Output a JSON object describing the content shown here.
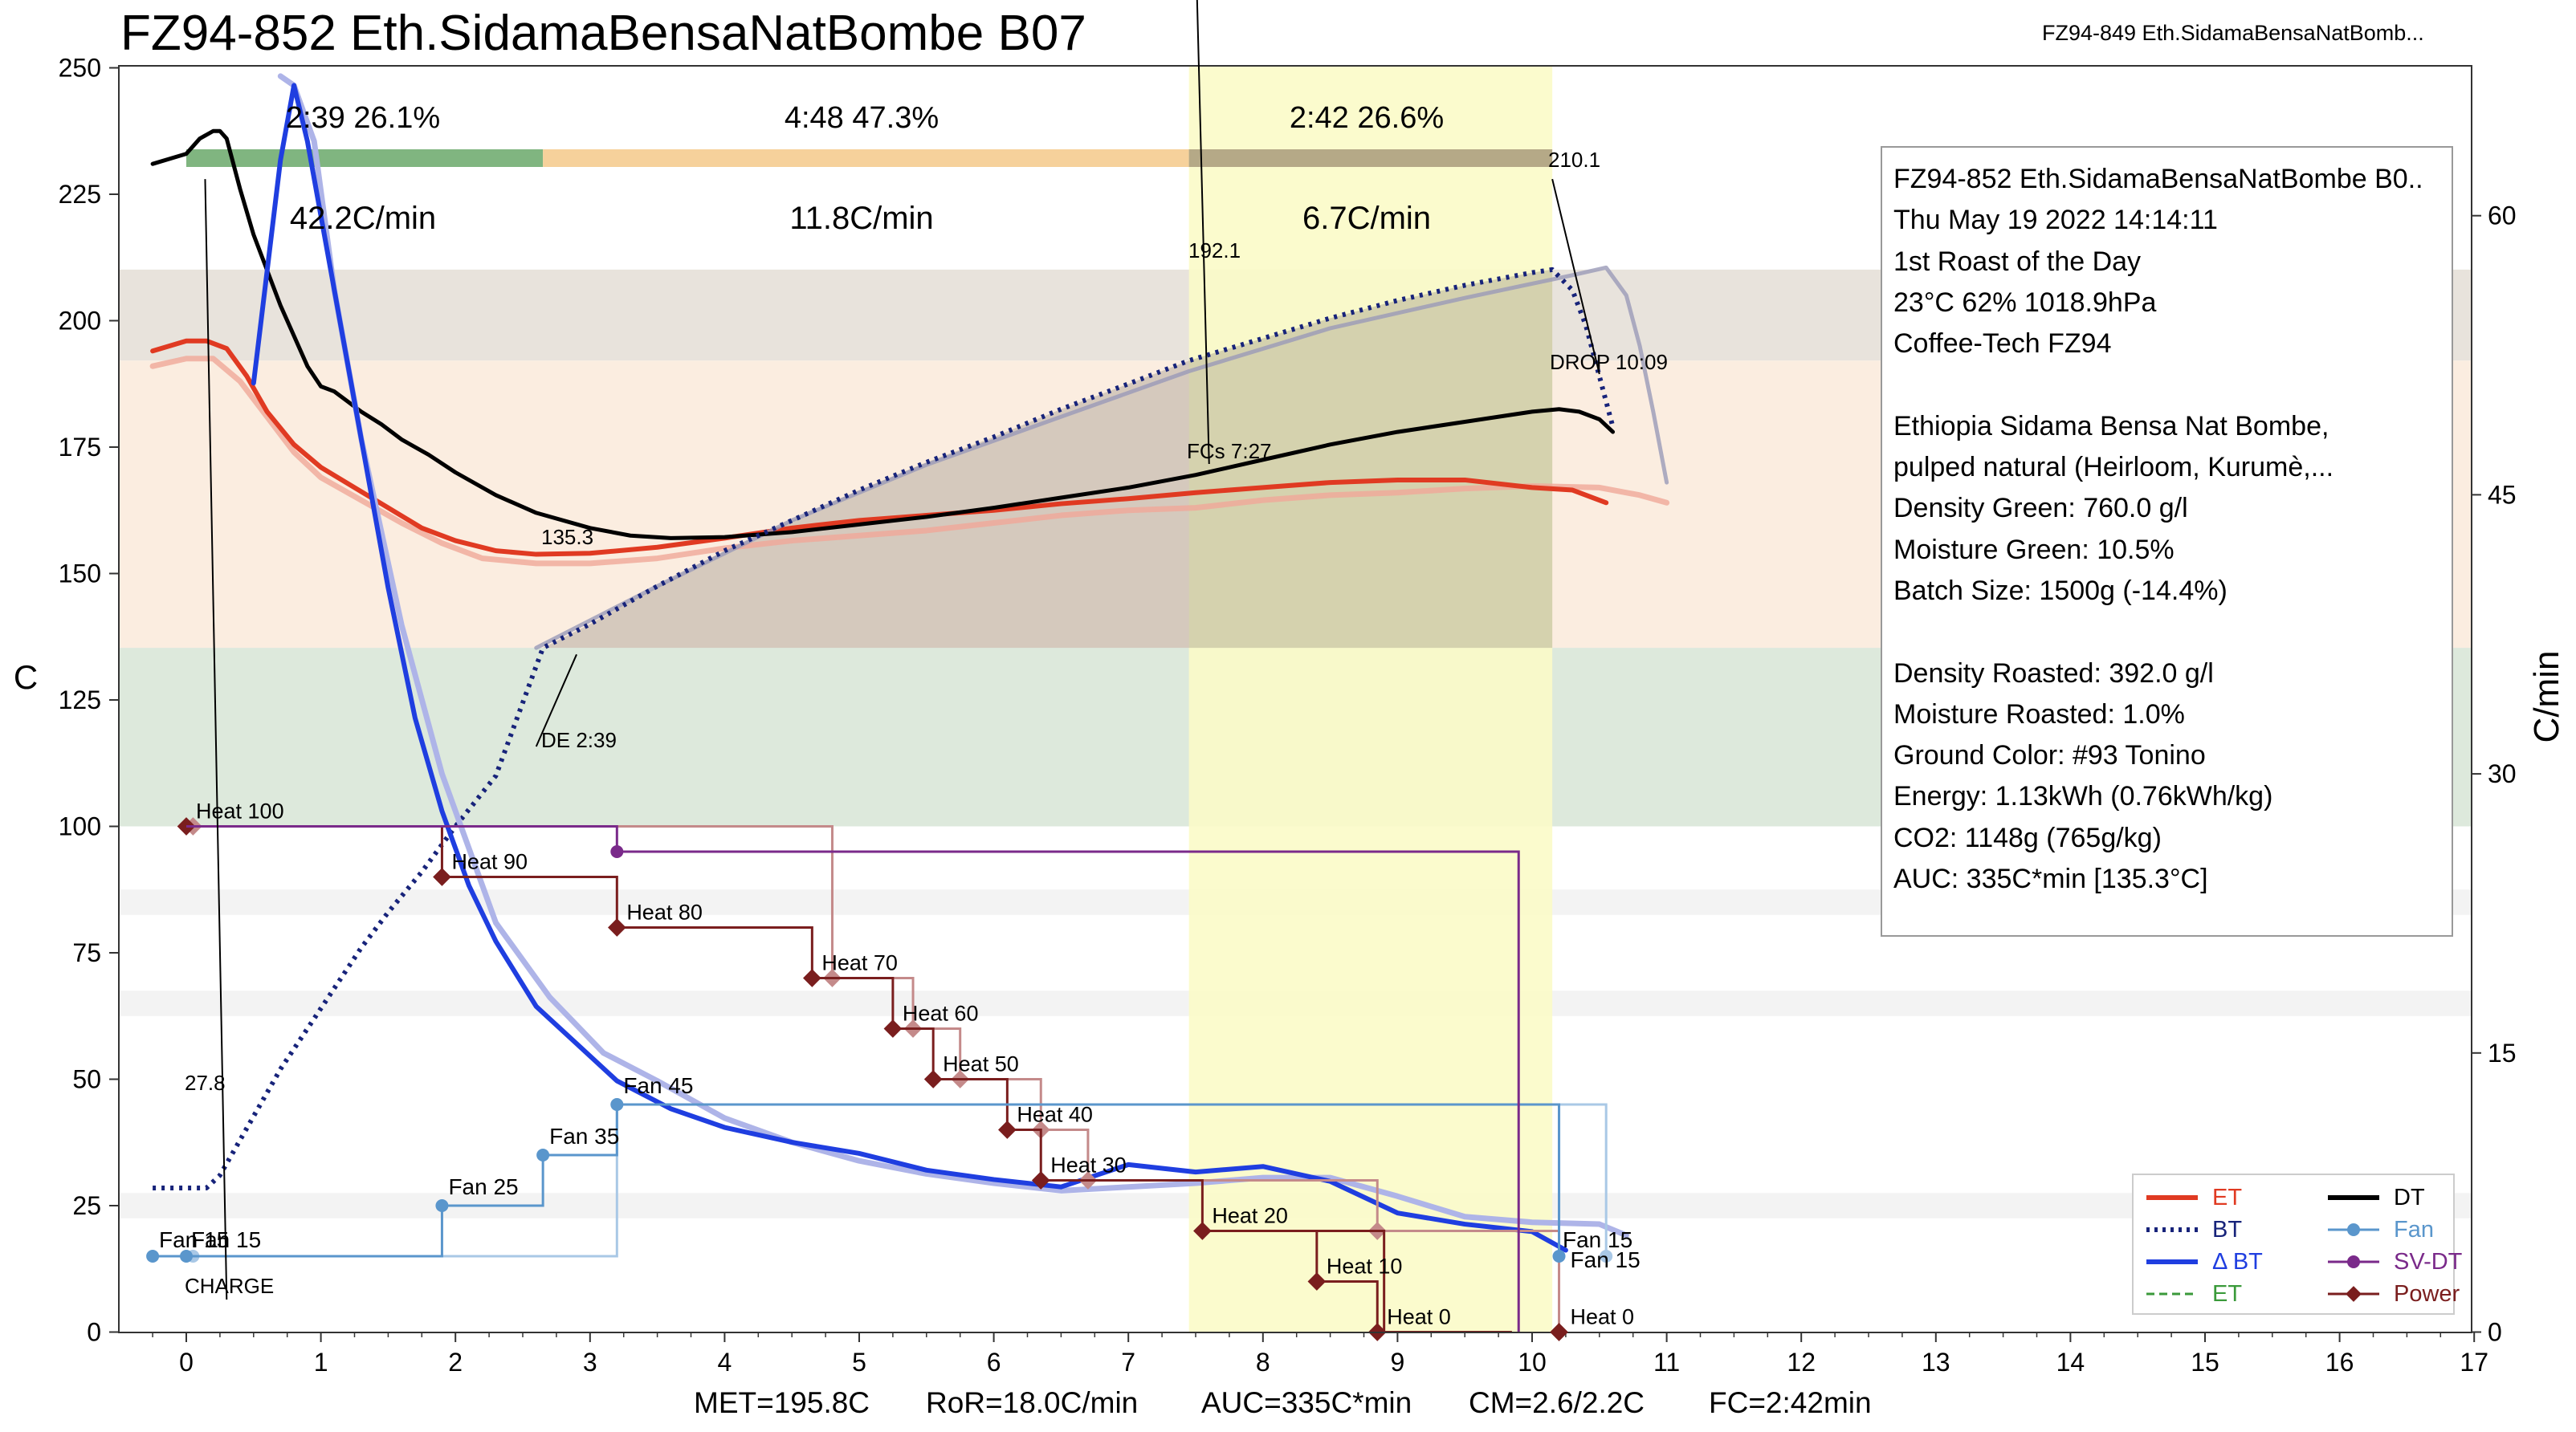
{
  "title": "FZ94-852 Eth.SidamaBensaNatBombe B07",
  "background_profile_title": "FZ94-849 Eth.SidamaBensaNatBomb...",
  "colors": {
    "ET": "#e03a22",
    "ET_background": "#f0a898",
    "BT": "#17237a",
    "DeltaBT": "#1f3ee0",
    "DeltaBT_background": "#aeb4e8",
    "DT": "#000000",
    "Fan": "#5a96cc",
    "SV_DT": "#7a2a8a",
    "Power": "#7a1e1e",
    "drying_phase": "#6aa86a",
    "maillard_phase": "#f5c98a",
    "finishing_phase": "#a89a7a",
    "dev_highlight": "#fbfbc8",
    "zone_top": "#e8e3dc",
    "zone_mid": "#fbede0",
    "zone_low": "#dde9dc"
  },
  "phases": [
    {
      "name": "drying",
      "time": "2:39",
      "percent": "26.1%",
      "ror": "42.2C/min"
    },
    {
      "name": "maillard",
      "time": "4:48",
      "percent": "47.3%",
      "ror": "11.8C/min"
    },
    {
      "name": "finishing",
      "time": "2:42",
      "percent": "26.6%",
      "ror": "6.7C/min"
    }
  ],
  "phase_labels": {
    "drying": "2:39  26.1%",
    "maillard": "4:48  47.3%",
    "finishing": "2:42  26.6%"
  },
  "annotations": {
    "charge_temp": "27.8",
    "charge_label": "CHARGE",
    "de_temp": "135.3",
    "de_label": "DE 2:39",
    "fcs_temp": "192.1",
    "fcs_label": "FCs 7:27",
    "drop_temp": "210.1",
    "drop_label": "DROP 10:09",
    "fan_charge_a": "Fan 15",
    "fan_charge_b": "Fan 15",
    "fan_end": "Fan 15"
  },
  "info_box": [
    "FZ94-852 Eth.SidamaBensaNatBombe B0..",
    "Thu May 19 2022 14:14:11",
    "1st Roast of the Day",
    "23°C  62%  1018.9hPa",
    "Coffee-Tech FZ94",
    "",
    "Ethiopia Sidama Bensa Nat Bombe,",
    " pulped natural (Heirloom, Kurumè,...",
    "Density Green: 760.0 g/l",
    "Moisture Green: 10.5%",
    "Batch Size: 1500g (-14.4%)",
    "",
    "Density Roasted: 392.0 g/l",
    "Moisture Roasted: 1.0%",
    "Ground Color: #93 Tonino",
    "Energy: 1.13kWh (0.76kWh/kg)",
    "CO2: 1148g (765g/kg)",
    "AUC: 335C*min [135.3°C]"
  ],
  "footer": {
    "met": "MET=195.8C",
    "ror": "RoR=18.0C/min",
    "auc": "AUC=335C*min",
    "cm": "CM=2.6/2.2C",
    "fc": "FC=2:42min"
  },
  "legend": [
    {
      "label": "ET",
      "color": "#e03a22",
      "style": "solid",
      "marker": "none"
    },
    {
      "label": "DT",
      "color": "#000000",
      "style": "solid",
      "marker": "none"
    },
    {
      "label": "BT",
      "color": "#17237a",
      "style": "dotted",
      "marker": "none"
    },
    {
      "label": "Fan",
      "color": "#5a96cc",
      "style": "solid",
      "marker": "circle"
    },
    {
      "label": "Δ BT",
      "color": "#1f3ee0",
      "style": "solid",
      "marker": "none"
    },
    {
      "label": "SV-DT",
      "color": "#7a2a8a",
      "style": "solid",
      "marker": "circle"
    },
    {
      "label": "ET",
      "color": "#3a9a3a",
      "style": "dashed",
      "marker": "none"
    },
    {
      "label": "Power",
      "color": "#7a1e1e",
      "style": "solid",
      "marker": "diamond"
    }
  ],
  "chart_data": {
    "type": "line",
    "title": "FZ94-852 Eth.SidamaBensaNatBombe B07",
    "xlabel": "",
    "ylabel": "C",
    "y2label": "C/min",
    "xlim": [
      -0.45,
      17
    ],
    "ylim": [
      0,
      250
    ],
    "y2lim": [
      0,
      68
    ],
    "x_ticks": [
      0,
      1,
      2,
      3,
      4,
      5,
      6,
      7,
      8,
      9,
      10,
      11,
      12,
      13,
      14,
      15,
      16,
      17
    ],
    "y_ticks": [
      0,
      25,
      50,
      75,
      100,
      125,
      150,
      175,
      200,
      225,
      250
    ],
    "y2_ticks": [
      0,
      15,
      30,
      45,
      60
    ],
    "grid": false,
    "legend_position": "bottom-right",
    "background_zones": [
      {
        "from": 192.1,
        "to": 210.1,
        "color": "zone_top"
      },
      {
        "from": 135.3,
        "to": 192.1,
        "color": "zone_mid"
      },
      {
        "from": 100,
        "to": 135.3,
        "color": "zone_low"
      }
    ],
    "development_band": {
      "x_from": 7.45,
      "x_to": 10.15
    },
    "auc_area": {
      "x_from": 2.65,
      "x_to": 10.15
    },
    "series": [
      {
        "name": "ET",
        "axis": "left",
        "points": [
          [
            -0.25,
            194
          ],
          [
            0,
            196
          ],
          [
            0.15,
            196
          ],
          [
            0.3,
            194.5
          ],
          [
            0.45,
            189
          ],
          [
            0.6,
            182
          ],
          [
            0.8,
            175.5
          ],
          [
            1,
            171
          ],
          [
            1.25,
            167
          ],
          [
            1.5,
            163
          ],
          [
            1.75,
            159
          ],
          [
            2,
            156.5
          ],
          [
            2.3,
            154.5
          ],
          [
            2.6,
            153.8
          ],
          [
            3,
            154
          ],
          [
            3.5,
            155.2
          ],
          [
            4,
            157
          ],
          [
            4.5,
            159
          ],
          [
            5,
            160.5
          ],
          [
            5.5,
            161.5
          ],
          [
            6,
            162.5
          ],
          [
            6.5,
            163.8
          ],
          [
            7,
            164.8
          ],
          [
            7.5,
            166
          ],
          [
            8,
            167
          ],
          [
            8.5,
            168
          ],
          [
            9,
            168.5
          ],
          [
            9.5,
            168.5
          ],
          [
            10,
            167
          ],
          [
            10.3,
            166.5
          ],
          [
            10.55,
            164
          ]
        ]
      },
      {
        "name": "ET background",
        "axis": "left",
        "points": [
          [
            -0.25,
            191
          ],
          [
            0,
            192.5
          ],
          [
            0.2,
            192.5
          ],
          [
            0.4,
            188
          ],
          [
            0.6,
            181
          ],
          [
            0.8,
            174
          ],
          [
            1,
            169
          ],
          [
            1.3,
            164.5
          ],
          [
            1.6,
            160
          ],
          [
            1.9,
            156
          ],
          [
            2.2,
            153
          ],
          [
            2.6,
            152
          ],
          [
            3,
            152
          ],
          [
            3.5,
            153
          ],
          [
            4,
            155
          ],
          [
            4.5,
            156.5
          ],
          [
            5,
            157.5
          ],
          [
            5.5,
            158.5
          ],
          [
            6,
            160
          ],
          [
            6.5,
            161.5
          ],
          [
            7,
            162.5
          ],
          [
            7.5,
            163
          ],
          [
            8,
            164.5
          ],
          [
            8.5,
            165.5
          ],
          [
            9,
            166
          ],
          [
            9.5,
            166.8
          ],
          [
            10,
            167.3
          ],
          [
            10.5,
            167
          ],
          [
            10.8,
            165.5
          ],
          [
            11,
            164
          ]
        ]
      },
      {
        "name": "DT",
        "axis": "left",
        "points": [
          [
            -0.25,
            231
          ],
          [
            0,
            233
          ],
          [
            0.1,
            236
          ],
          [
            0.2,
            237.5
          ],
          [
            0.25,
            237.5
          ],
          [
            0.3,
            236
          ],
          [
            0.4,
            226
          ],
          [
            0.5,
            217
          ],
          [
            0.6,
            210
          ],
          [
            0.7,
            203
          ],
          [
            0.8,
            197
          ],
          [
            0.9,
            191
          ],
          [
            1,
            187
          ],
          [
            1.1,
            186
          ],
          [
            1.2,
            184
          ],
          [
            1.3,
            182
          ],
          [
            1.45,
            179.5
          ],
          [
            1.6,
            176.5
          ],
          [
            1.8,
            173.5
          ],
          [
            2,
            170
          ],
          [
            2.3,
            165.5
          ],
          [
            2.6,
            162
          ],
          [
            3,
            159
          ],
          [
            3.3,
            157.5
          ],
          [
            3.6,
            157
          ],
          [
            4,
            157.2
          ],
          [
            4.5,
            158.2
          ],
          [
            5,
            159.7
          ],
          [
            5.5,
            161.2
          ],
          [
            6,
            163
          ],
          [
            6.5,
            165
          ],
          [
            7,
            167
          ],
          [
            7.5,
            169.5
          ],
          [
            8,
            172.5
          ],
          [
            8.5,
            175.5
          ],
          [
            9,
            178
          ],
          [
            9.5,
            180
          ],
          [
            10,
            182
          ],
          [
            10.2,
            182.5
          ],
          [
            10.35,
            182
          ],
          [
            10.5,
            180.5
          ],
          [
            10.6,
            178
          ]
        ]
      },
      {
        "name": "BT",
        "axis": "left",
        "points": [
          [
            -0.25,
            28.5
          ],
          [
            0.15,
            28.5
          ],
          [
            0.25,
            31
          ],
          [
            0.4,
            38
          ],
          [
            0.55,
            45
          ],
          [
            0.7,
            52
          ],
          [
            0.9,
            60
          ],
          [
            1.1,
            68
          ],
          [
            1.3,
            76
          ],
          [
            1.5,
            83
          ],
          [
            1.75,
            91
          ],
          [
            2,
            100
          ],
          [
            2.3,
            110
          ],
          [
            2.65,
            135.3
          ],
          [
            3,
            140
          ],
          [
            3.5,
            147.5
          ],
          [
            4,
            154.5
          ],
          [
            4.5,
            160.5
          ],
          [
            5,
            166.5
          ],
          [
            5.5,
            172
          ],
          [
            6,
            177
          ],
          [
            6.5,
            182.5
          ],
          [
            7,
            187.5
          ],
          [
            7.45,
            192.1
          ],
          [
            8,
            196.5
          ],
          [
            8.5,
            200.5
          ],
          [
            9,
            204
          ],
          [
            9.5,
            207
          ],
          [
            10,
            209.5
          ],
          [
            10.15,
            210.1
          ],
          [
            10.3,
            206
          ],
          [
            10.4,
            199
          ],
          [
            10.5,
            189
          ],
          [
            10.6,
            179
          ]
        ]
      },
      {
        "name": "BT background",
        "axis": "left",
        "points": [
          [
            2.6,
            135.3
          ],
          [
            3.5,
            147.5
          ],
          [
            4.5,
            160.5
          ],
          [
            5.5,
            171.5
          ],
          [
            6.5,
            181
          ],
          [
            7.45,
            190
          ],
          [
            8.5,
            198.5
          ],
          [
            9.5,
            204.5
          ],
          [
            10.3,
            209
          ],
          [
            10.55,
            210.5
          ],
          [
            10.7,
            205
          ],
          [
            10.8,
            195
          ],
          [
            10.9,
            182
          ],
          [
            11,
            168
          ]
        ]
      },
      {
        "name": "Δ BT",
        "axis": "right",
        "points": [
          [
            0.5,
            51
          ],
          [
            0.6,
            57
          ],
          [
            0.7,
            63
          ],
          [
            0.8,
            67
          ],
          [
            0.9,
            64
          ],
          [
            1.1,
            56
          ],
          [
            1.3,
            48
          ],
          [
            1.5,
            40
          ],
          [
            1.7,
            33
          ],
          [
            1.9,
            28
          ],
          [
            2.1,
            24
          ],
          [
            2.3,
            21
          ],
          [
            2.6,
            17.5
          ],
          [
            2.9,
            15.5
          ],
          [
            3.2,
            13.5
          ],
          [
            3.6,
            12
          ],
          [
            4,
            11
          ],
          [
            4.5,
            10.2
          ],
          [
            5,
            9.6
          ],
          [
            5.5,
            8.7
          ],
          [
            6,
            8.2
          ],
          [
            6.5,
            7.8
          ],
          [
            7,
            9
          ],
          [
            7.5,
            8.6
          ],
          [
            8,
            8.9
          ],
          [
            8.5,
            8.1
          ],
          [
            9,
            6.4
          ],
          [
            9.5,
            5.8
          ],
          [
            10,
            5.4
          ],
          [
            10.25,
            4.4
          ]
        ]
      },
      {
        "name": "Δ BT background",
        "axis": "right",
        "points": [
          [
            0.7,
            67.5
          ],
          [
            0.8,
            67
          ],
          [
            0.95,
            64
          ],
          [
            1.1,
            56
          ],
          [
            1.3,
            48
          ],
          [
            1.6,
            38
          ],
          [
            1.9,
            30
          ],
          [
            2.3,
            22
          ],
          [
            2.7,
            18
          ],
          [
            3.1,
            15
          ],
          [
            3.5,
            13.5
          ],
          [
            4,
            11.5
          ],
          [
            4.5,
            10.2
          ],
          [
            5,
            9.2
          ],
          [
            5.5,
            8.5
          ],
          [
            6,
            8
          ],
          [
            6.5,
            7.6
          ],
          [
            7,
            7.8
          ],
          [
            7.5,
            8
          ],
          [
            8,
            8.3
          ],
          [
            8.5,
            8.3
          ],
          [
            9,
            7.3
          ],
          [
            9.5,
            6.2
          ],
          [
            10,
            5.9
          ],
          [
            10.5,
            5.8
          ],
          [
            10.7,
            5.2
          ]
        ]
      },
      {
        "name": "Power",
        "axis": "left",
        "step": true,
        "markers": [
          [
            0,
            100
          ],
          [
            1.9,
            90
          ],
          [
            3.2,
            80
          ],
          [
            4.65,
            70
          ],
          [
            5.25,
            60
          ],
          [
            5.55,
            50
          ],
          [
            6.1,
            40
          ],
          [
            6.35,
            30
          ],
          [
            7.55,
            20
          ],
          [
            8.4,
            10
          ],
          [
            8.85,
            0
          ]
        ],
        "labels": [
          "Heat 100",
          "Heat 90",
          "Heat 80",
          "Heat 70",
          "Heat 60",
          "Heat 50",
          "Heat 40",
          "Heat 30",
          "Heat 20",
          "Heat 10",
          "Heat 0"
        ]
      },
      {
        "name": "Power background",
        "axis": "left",
        "step": true,
        "markers": [
          [
            0.05,
            100
          ],
          [
            4.8,
            70
          ],
          [
            5.4,
            60
          ],
          [
            5.75,
            50
          ],
          [
            6.35,
            40
          ],
          [
            6.7,
            30
          ],
          [
            8.85,
            20
          ],
          [
            10.2,
            0
          ]
        ],
        "labels": []
      },
      {
        "name": "Fan",
        "axis": "left",
        "step": true,
        "markers": [
          [
            -0.25,
            15
          ],
          [
            0,
            15
          ],
          [
            1.9,
            25
          ],
          [
            2.65,
            35
          ],
          [
            3.2,
            45
          ],
          [
            10.2,
            15
          ]
        ],
        "labels": [
          "Fan 15",
          "",
          "Fan 25",
          "Fan 35",
          "Fan 45",
          "Fan 15"
        ]
      },
      {
        "name": "Fan background",
        "axis": "left",
        "step": true,
        "markers": [
          [
            0.05,
            15
          ],
          [
            3.2,
            45
          ],
          [
            10.55,
            15
          ]
        ],
        "labels": []
      },
      {
        "name": "SV-DT",
        "axis": "left",
        "step": true,
        "markers": [
          [
            3.2,
            95
          ]
        ],
        "labels": []
      }
    ],
    "drop_end_label": {
      "label": "Heat 0",
      "x": 10.2,
      "y": 0
    }
  }
}
